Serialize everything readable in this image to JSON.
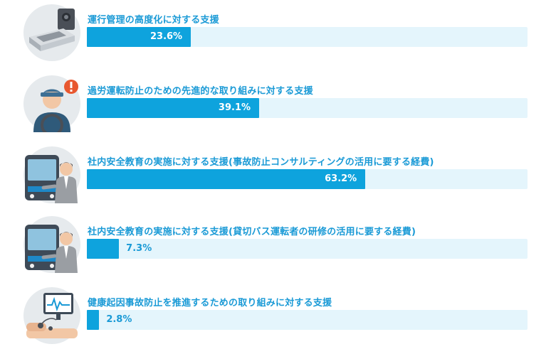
{
  "chart_data": {
    "type": "bar",
    "orientation": "horizontal",
    "xlim": [
      0,
      100
    ],
    "value_suffix": "%",
    "categories": [
      "運行管理の高度化に対する支援",
      "過労運転防止のための先進的な取り組みに対する支援",
      "社内安全教育の実施に対する支援(事故防止コンサルティングの活用に要する経費)",
      "社内安全教育の実施に対する支援(貸切バス運転者の研修の活用に要する経費)",
      "健康起因事故防止を推進するための取り組みに対する支援"
    ],
    "values": [
      23.6,
      39.1,
      63.2,
      7.3,
      2.8
    ],
    "value_labels": [
      "23.6%",
      "39.1%",
      "63.2%",
      "7.3%",
      "2.8%"
    ],
    "icons": [
      "dashcam-device-icon",
      "tired-driver-alert-icon",
      "bus-instructor-icon",
      "bus-instructor-icon",
      "health-monitor-icon"
    ],
    "colors": {
      "bar": "#0ea3dd",
      "track": "#e4f5fc",
      "label": "#1a9ad6",
      "icon_bg": "#e6eaed"
    }
  }
}
